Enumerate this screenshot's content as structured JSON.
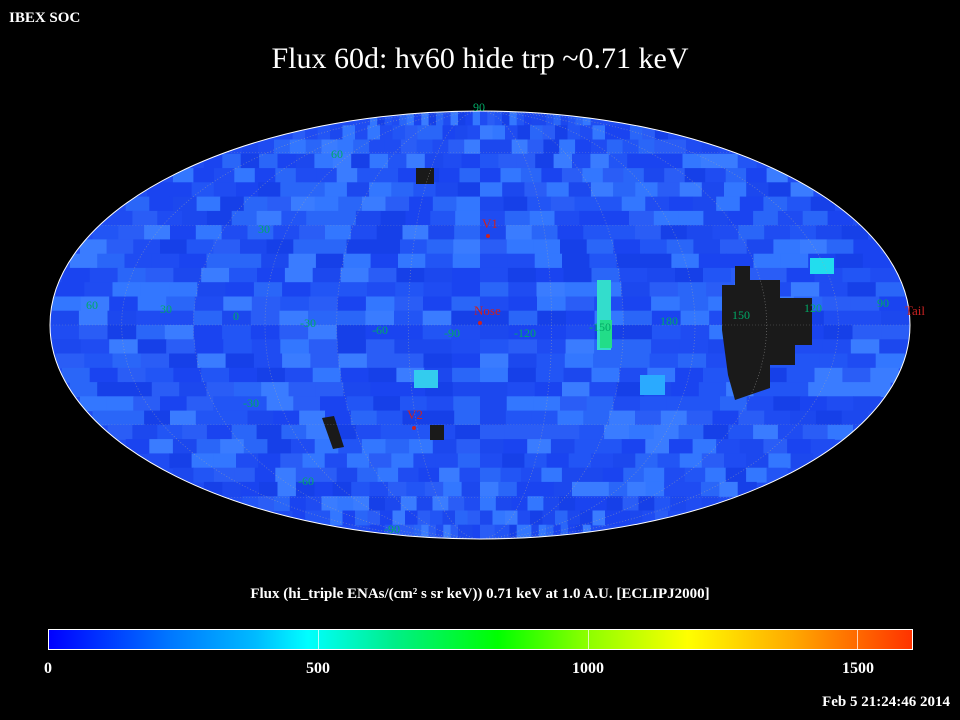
{
  "header": {
    "org": "IBEX SOC",
    "title": "Flux   60d: hv60 hide trp ~0.71 keV"
  },
  "map": {
    "projection": "Mollweide (ecliptic J2000)",
    "background_color": "#2244ee",
    "lat_labels": [
      "90",
      "60",
      "30",
      "-30",
      "-60",
      "-90"
    ],
    "lon_labels": [
      "60",
      "30",
      "0",
      "-30",
      "-60",
      "-90",
      "-120",
      "-150",
      "180",
      "150",
      "120",
      "90"
    ],
    "markers": [
      {
        "name": "V1",
        "color": "#cc2222"
      },
      {
        "name": "Nose",
        "color": "#cc2222"
      },
      {
        "name": "V2",
        "color": "#cc2222"
      },
      {
        "name": "Tail",
        "color": "#cc2222"
      }
    ]
  },
  "colorbar": {
    "caption": "Flux (hi_triple ENAs/(cm² s sr keV))  0.71 keV at 1.0 A.U. [ECLIPJ2000]",
    "ticks": [
      "0",
      "500",
      "1000",
      "1500"
    ],
    "range": [
      0,
      1600
    ]
  },
  "footer": {
    "timestamp": "Feb  5 21:24:46 2014"
  }
}
